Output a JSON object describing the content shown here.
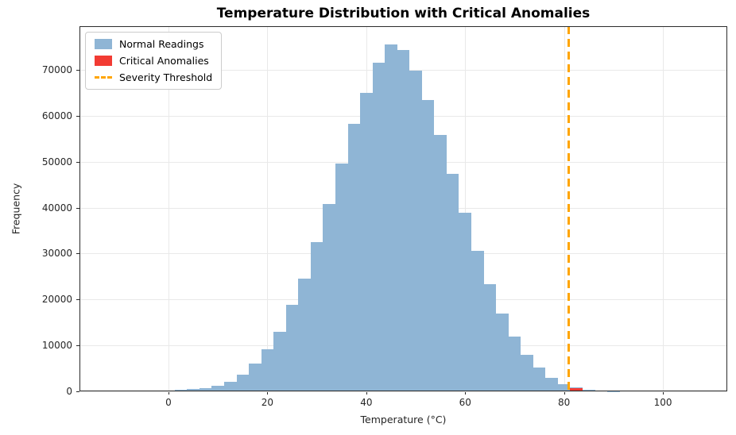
{
  "chart_data": {
    "type": "histogram",
    "title": "Temperature Distribution with Critical Anomalies",
    "xlabel": "Temperature (°C)",
    "ylabel": "Frequency",
    "xlim": [
      -18,
      113
    ],
    "ylim": [
      0,
      79500
    ],
    "x_ticks": [
      0,
      20,
      40,
      60,
      80,
      100
    ],
    "y_ticks": [
      0,
      10000,
      20000,
      30000,
      40000,
      50000,
      60000,
      70000
    ],
    "grid": true,
    "legend_position": "upper-left",
    "bin_width": 2.5,
    "series": [
      {
        "name": "Normal Readings",
        "color": "#8FB5D5",
        "bin_centers": [
          0,
          2.5,
          5,
          7.5,
          10,
          12.5,
          15,
          17.5,
          20,
          22.5,
          25,
          27.5,
          30,
          32.5,
          35,
          37.5,
          40,
          42.5,
          45,
          47.5,
          50,
          52.5,
          55,
          57.5,
          60,
          62.5,
          65,
          67.5,
          70,
          72.5,
          75,
          77.5,
          80,
          82.5,
          85,
          87.5,
          90
        ],
        "counts": [
          150,
          260,
          450,
          760,
          1250,
          2100,
          3700,
          6100,
          9200,
          13000,
          18800,
          24600,
          32500,
          40800,
          49600,
          58300,
          64900,
          71600,
          75600,
          74300,
          69900,
          63500,
          55900,
          47300,
          38800,
          30600,
          23400,
          17000,
          11900,
          7900,
          5100,
          3000,
          1600,
          800,
          350,
          150,
          60
        ]
      },
      {
        "name": "Critical Anomalies",
        "color": "#F23B33",
        "bin_centers": [
          82.5,
          85
        ],
        "counts": [
          650,
          250
        ]
      }
    ],
    "threshold": {
      "label": "Severity Threshold",
      "x": 81,
      "color": "#FFA500",
      "style": "dashed"
    }
  }
}
